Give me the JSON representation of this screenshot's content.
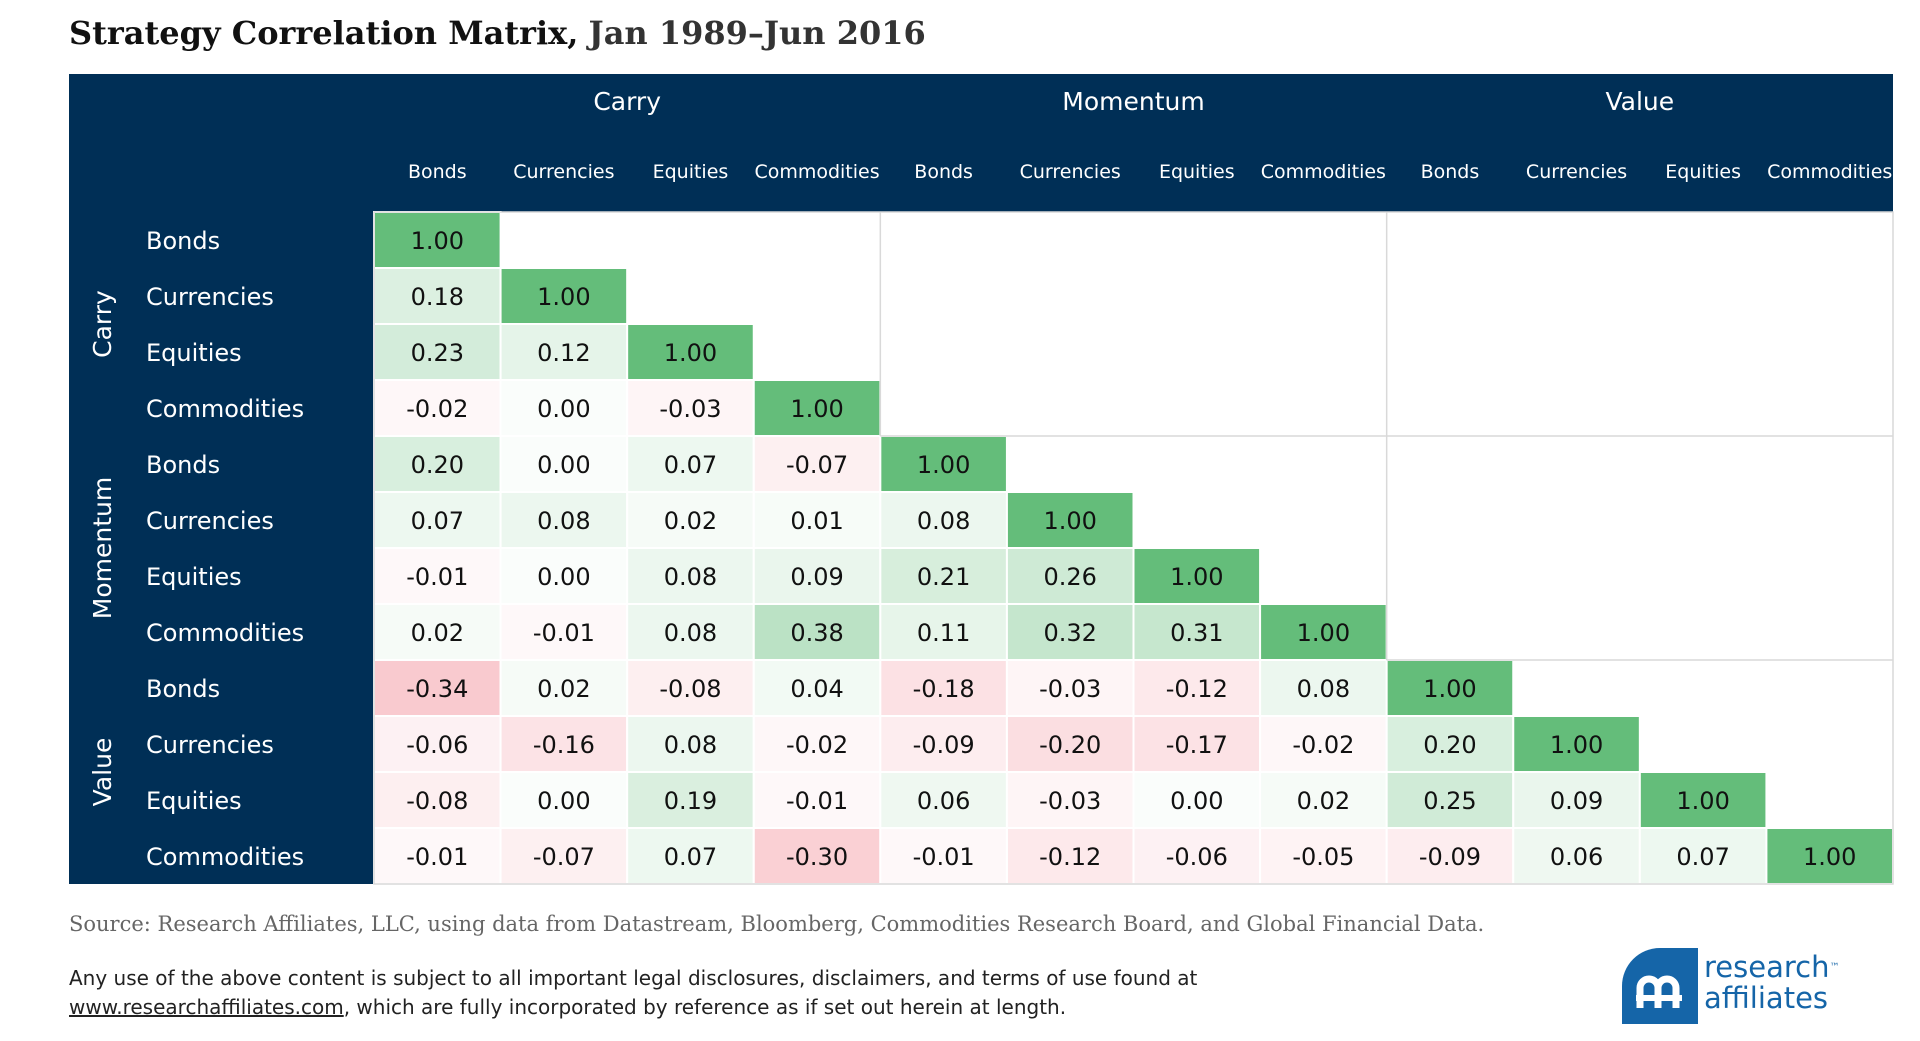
{
  "header": {
    "title": "Strategy Correlation Matrix,",
    "subtitle": "Jan 1989–Jun 2016"
  },
  "chart_data": {
    "type": "heatmap",
    "groups": [
      "Carry",
      "Momentum",
      "Value"
    ],
    "categories": [
      "Bonds",
      "Currencies",
      "Equities",
      "Commodities"
    ],
    "columns": [
      "Bonds",
      "Currencies",
      "Equities",
      "Commodities",
      "Bonds",
      "Currencies",
      "Equities",
      "Commodities",
      "Bonds",
      "Currencies",
      "Equities",
      "Commodities"
    ],
    "rows": [
      "Bonds",
      "Currencies",
      "Equities",
      "Commodities",
      "Bonds",
      "Currencies",
      "Equities",
      "Commodities",
      "Bonds",
      "Currencies",
      "Equities",
      "Commodities"
    ],
    "values": [
      [
        1.0
      ],
      [
        0.18,
        1.0
      ],
      [
        0.23,
        0.12,
        1.0
      ],
      [
        -0.02,
        0.0,
        -0.03,
        1.0
      ],
      [
        0.2,
        0.0,
        0.07,
        -0.07,
        1.0
      ],
      [
        0.07,
        0.08,
        0.02,
        0.01,
        0.08,
        1.0
      ],
      [
        -0.01,
        0.0,
        0.08,
        0.09,
        0.21,
        0.26,
        1.0
      ],
      [
        0.02,
        -0.01,
        0.08,
        0.38,
        0.11,
        0.32,
        0.31,
        1.0
      ],
      [
        -0.34,
        0.02,
        -0.08,
        0.04,
        -0.18,
        -0.03,
        -0.12,
        0.08,
        1.0
      ],
      [
        -0.06,
        -0.16,
        0.08,
        -0.02,
        -0.09,
        -0.2,
        -0.17,
        -0.02,
        0.2,
        1.0
      ],
      [
        -0.08,
        0.0,
        0.19,
        -0.01,
        0.06,
        -0.03,
        0.0,
        0.02,
        0.25,
        0.09,
        1.0
      ],
      [
        -0.01,
        -0.07,
        0.07,
        -0.3,
        -0.01,
        -0.12,
        -0.06,
        -0.05,
        -0.09,
        0.06,
        0.07,
        1.0
      ]
    ],
    "colors": {
      "header_bg": "#002f56",
      "diagonal": "#64bd7a",
      "positive": "#64bd7a",
      "negative": "#f07a87",
      "empty": "#ffffff",
      "grid_line": "#d9d9d9",
      "cell_text": "#111111",
      "header_text": "#ffffff"
    }
  },
  "footer": {
    "source": "Source: Research Affiliates, LLC, using data from Datastream, Bloomberg, Commodities Research Board, and Global Financial Data.",
    "disclaimer_line1": "Any use of the above content is subject to all important legal disclosures, disclaimers, and terms of use found at",
    "disclaimer_link": "www.researchaffiliates.com",
    "disclaimer_line2_rest": ", which are fully incorporated by reference as if set out herein at length."
  },
  "logo": {
    "line1": "research",
    "trademark": "™",
    "line2": "affiliates",
    "icon": "research-affiliates-logo-icon"
  }
}
